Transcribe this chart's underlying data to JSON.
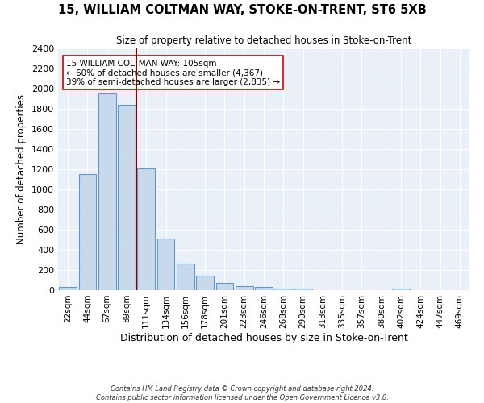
{
  "title": "15, WILLIAM COLTMAN WAY, STOKE-ON-TRENT, ST6 5XB",
  "subtitle": "Size of property relative to detached houses in Stoke-on-Trent",
  "xlabel": "Distribution of detached houses by size in Stoke-on-Trent",
  "ylabel": "Number of detached properties",
  "bin_labels": [
    "22sqm",
    "44sqm",
    "67sqm",
    "89sqm",
    "111sqm",
    "134sqm",
    "156sqm",
    "178sqm",
    "201sqm",
    "223sqm",
    "246sqm",
    "268sqm",
    "290sqm",
    "313sqm",
    "335sqm",
    "357sqm",
    "380sqm",
    "402sqm",
    "424sqm",
    "447sqm",
    "469sqm"
  ],
  "bar_heights": [
    30,
    1150,
    1950,
    1840,
    1210,
    510,
    265,
    148,
    75,
    42,
    35,
    20,
    15,
    0,
    0,
    0,
    0,
    15,
    0,
    0,
    0
  ],
  "property_label": "15 WILLIAM COLTMAN WAY: 105sqm",
  "annotation_line1": "← 60% of detached houses are smaller (4,367)",
  "annotation_line2": "39% of semi-detached houses are larger (2,835) →",
  "vline_pos": 3.5,
  "bar_color": "#c9d9ec",
  "bar_edge_color": "#5b9bd5",
  "vline_color": "#8b0000",
  "bg_color": "#eaf0f8",
  "footer1": "Contains HM Land Registry data © Crown copyright and database right 2024.",
  "footer2": "Contains public sector information licensed under the Open Government Licence v3.0.",
  "ylim": [
    0,
    2400
  ],
  "yticks": [
    0,
    200,
    400,
    600,
    800,
    1000,
    1200,
    1400,
    1600,
    1800,
    2000,
    2200,
    2400
  ]
}
